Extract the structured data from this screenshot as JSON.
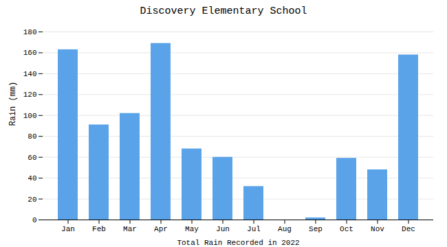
{
  "chart_data": {
    "type": "bar",
    "title": "Discovery Elementary School",
    "xlabel": "Total Rain Recorded in 2022",
    "ylabel": "Rain (mm)",
    "categories": [
      "Jan",
      "Feb",
      "Mar",
      "Apr",
      "May",
      "Jun",
      "Jul",
      "Aug",
      "Sep",
      "Oct",
      "Nov",
      "Dec"
    ],
    "values": [
      163,
      91,
      102,
      169,
      68,
      60,
      32,
      0,
      2,
      59,
      48,
      158
    ],
    "color": "#5ba3e8",
    "ylim": [
      0,
      180
    ],
    "yticks": [
      0,
      20,
      40,
      60,
      80,
      100,
      120,
      140,
      160,
      180
    ],
    "grid": true
  }
}
